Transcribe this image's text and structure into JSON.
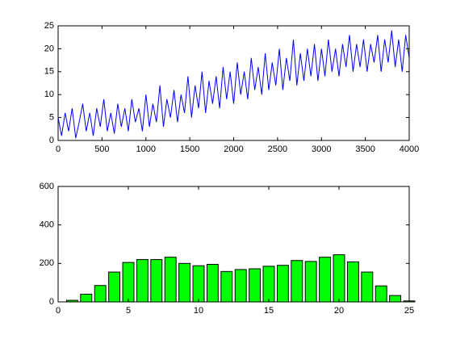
{
  "chart_data": [
    {
      "type": "line",
      "x": [
        0,
        40,
        80,
        120,
        160,
        200,
        240,
        280,
        320,
        360,
        400,
        440,
        480,
        520,
        560,
        600,
        640,
        680,
        720,
        760,
        800,
        840,
        880,
        920,
        960,
        1000,
        1040,
        1080,
        1120,
        1160,
        1200,
        1240,
        1280,
        1320,
        1360,
        1400,
        1440,
        1480,
        1520,
        1560,
        1600,
        1640,
        1680,
        1720,
        1760,
        1800,
        1840,
        1880,
        1920,
        1960,
        2000,
        2040,
        2080,
        2120,
        2160,
        2200,
        2240,
        2280,
        2320,
        2360,
        2400,
        2440,
        2480,
        2520,
        2560,
        2600,
        2640,
        2680,
        2720,
        2760,
        2800,
        2840,
        2880,
        2920,
        2960,
        3000,
        3040,
        3080,
        3120,
        3160,
        3200,
        3240,
        3280,
        3320,
        3360,
        3400,
        3440,
        3480,
        3520,
        3560,
        3600,
        3640,
        3680,
        3720,
        3760,
        3800,
        3840,
        3880,
        3920,
        3960,
        4000
      ],
      "series": [
        {
          "color": "#0000ff",
          "values": [
            5,
            1,
            6,
            2,
            7,
            0.5,
            4,
            8,
            2,
            6,
            1,
            7,
            3,
            9,
            2,
            6,
            1.5,
            8,
            3,
            7,
            2,
            9,
            4,
            7,
            2,
            10,
            3,
            8,
            4,
            12,
            3,
            9,
            5,
            11,
            4,
            10,
            6,
            14,
            5,
            12,
            7,
            15,
            6,
            13,
            8,
            14,
            7,
            16,
            9,
            15,
            8,
            17,
            10,
            15,
            9,
            18,
            11,
            16,
            10,
            19,
            11,
            17,
            12,
            20,
            11,
            18,
            13,
            22,
            12,
            19,
            13,
            20,
            14,
            21,
            13,
            20,
            14,
            22,
            15,
            20,
            14,
            21,
            16,
            23,
            15,
            21,
            16,
            22,
            15,
            21,
            17,
            23,
            15,
            22,
            17,
            24,
            16,
            22,
            15,
            23,
            18
          ]
        }
      ],
      "xlim": [
        0,
        4000
      ],
      "xticks": [
        0,
        500,
        1000,
        1500,
        2000,
        2500,
        3000,
        3500,
        4000
      ],
      "ylim": [
        0,
        25
      ],
      "yticks": [
        0,
        5,
        10,
        15,
        20,
        25
      ]
    },
    {
      "type": "histogram",
      "bins": [
        0.5,
        1.5,
        2.5,
        3.5,
        4.5,
        5.5,
        6.5,
        7.5,
        8.5,
        9.5,
        10.5,
        11.5,
        12.5,
        13.5,
        14.5,
        15.5,
        16.5,
        17.5,
        18.5,
        19.5,
        20.5,
        21.5,
        22.5,
        23.5,
        24.5,
        25.5
      ],
      "values": [
        8,
        40,
        85,
        155,
        205,
        220,
        220,
        232,
        200,
        188,
        195,
        158,
        168,
        172,
        185,
        190,
        215,
        210,
        232,
        245,
        208,
        155,
        83,
        33,
        5
      ],
      "color": "#00ff00",
      "edgecolor": "#000000",
      "xlim": [
        0,
        25
      ],
      "xticks": [
        0,
        5,
        10,
        15,
        20,
        25
      ],
      "ylim": [
        0,
        600
      ],
      "yticks": [
        0,
        200,
        400,
        600
      ]
    }
  ]
}
